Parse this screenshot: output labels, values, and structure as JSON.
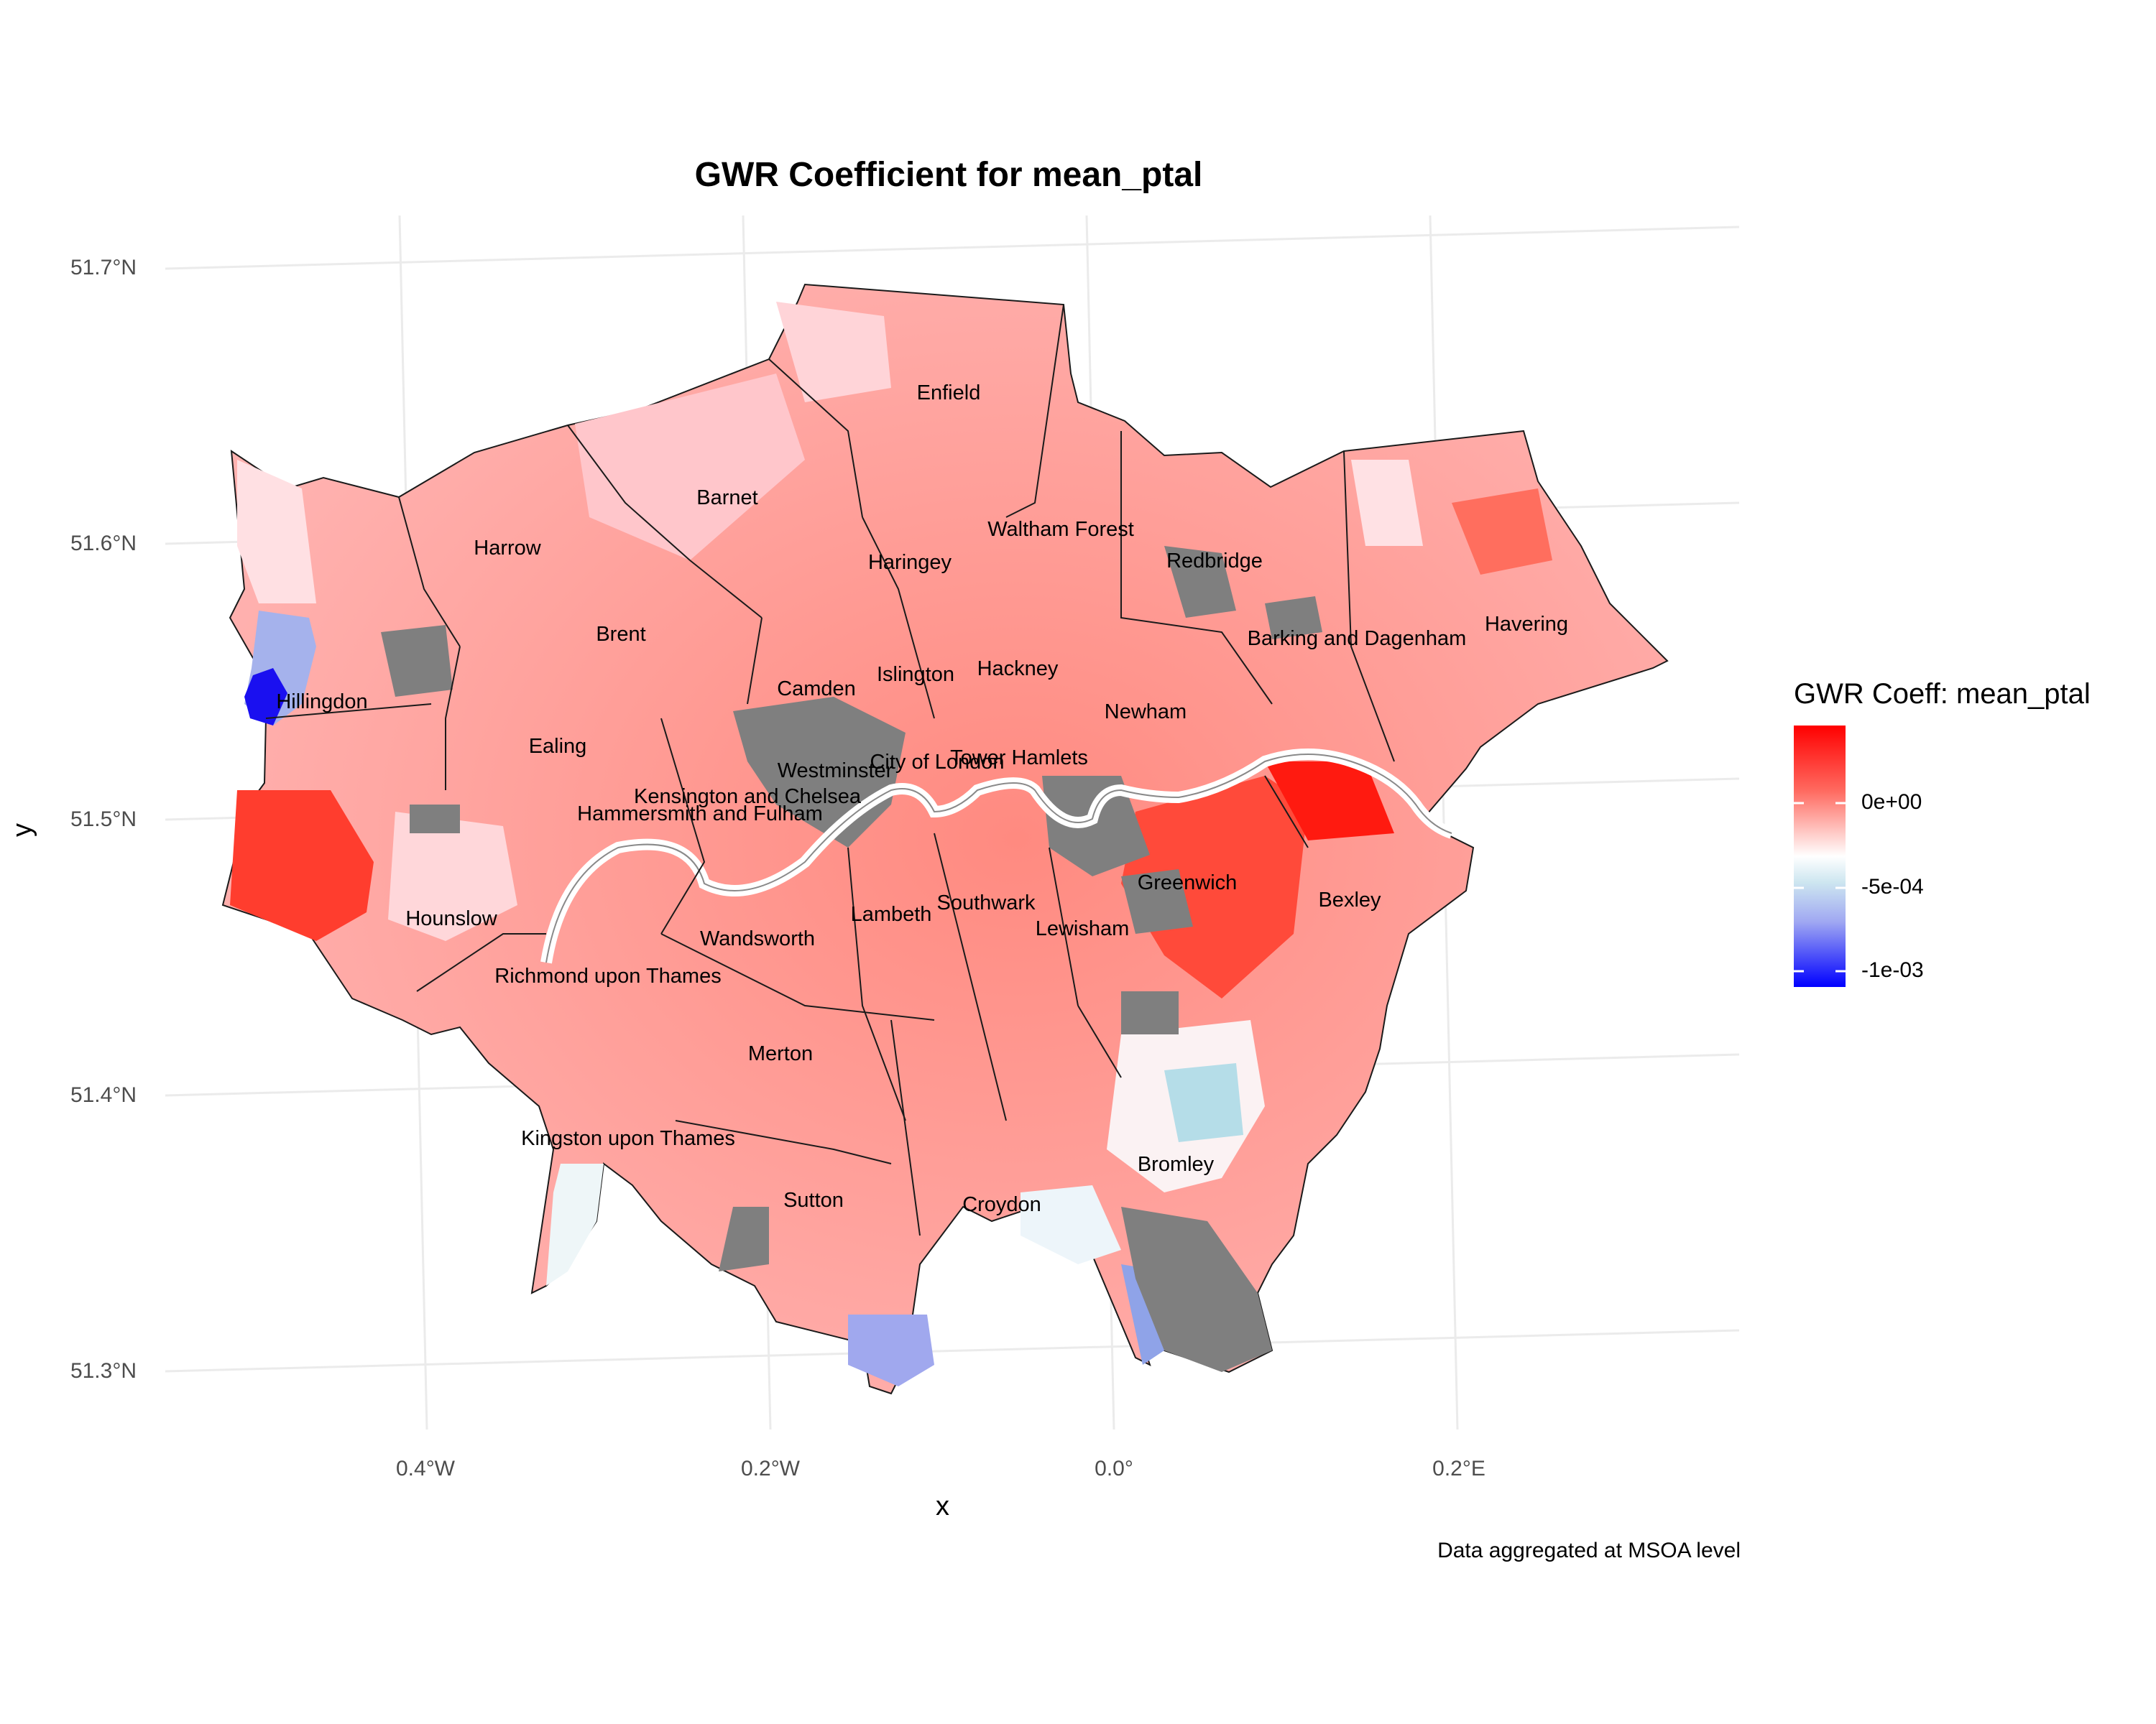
{
  "title": "GWR Coefficient for mean_ptal",
  "axes": {
    "xlabel": "x",
    "ylabel": "y",
    "y_ticks": [
      "51.7°N",
      "51.6°N",
      "51.5°N",
      "51.4°N",
      "51.3°N"
    ],
    "x_ticks": [
      "0.4°W",
      "0.2°W",
      "0.0°",
      "0.2°E"
    ]
  },
  "legend": {
    "title": "GWR Coeff: mean_ptal",
    "labels": [
      "0e+00",
      "-5e-04",
      "-1e-03"
    ],
    "colors": {
      "high": "#ff0000",
      "mid": "#ffffff",
      "low": "#0000ff",
      "missing": "#7f7f7f"
    }
  },
  "caption": "Data aggregated at MSOA level",
  "boroughs": [
    {
      "name": "Enfield"
    },
    {
      "name": "Barnet"
    },
    {
      "name": "Harrow"
    },
    {
      "name": "Waltham Forest"
    },
    {
      "name": "Haringey"
    },
    {
      "name": "Redbridge"
    },
    {
      "name": "Brent"
    },
    {
      "name": "Havering"
    },
    {
      "name": "Barking and Dagenham"
    },
    {
      "name": "Camden"
    },
    {
      "name": "Islington"
    },
    {
      "name": "Hackney"
    },
    {
      "name": "Hillingdon"
    },
    {
      "name": "Newham"
    },
    {
      "name": "Ealing"
    },
    {
      "name": "Westminster"
    },
    {
      "name": "City of London"
    },
    {
      "name": "Tower Hamlets"
    },
    {
      "name": "Kensington and Chelsea"
    },
    {
      "name": "Hammersmith and Fulham"
    },
    {
      "name": "Greenwich"
    },
    {
      "name": "Southwark"
    },
    {
      "name": "Bexley"
    },
    {
      "name": "Hounslow"
    },
    {
      "name": "Lambeth"
    },
    {
      "name": "Lewisham"
    },
    {
      "name": "Wandsworth"
    },
    {
      "name": "Richmond upon Thames"
    },
    {
      "name": "Merton"
    },
    {
      "name": "Kingston upon Thames"
    },
    {
      "name": "Bromley"
    },
    {
      "name": "Sutton"
    },
    {
      "name": "Croydon"
    }
  ]
}
